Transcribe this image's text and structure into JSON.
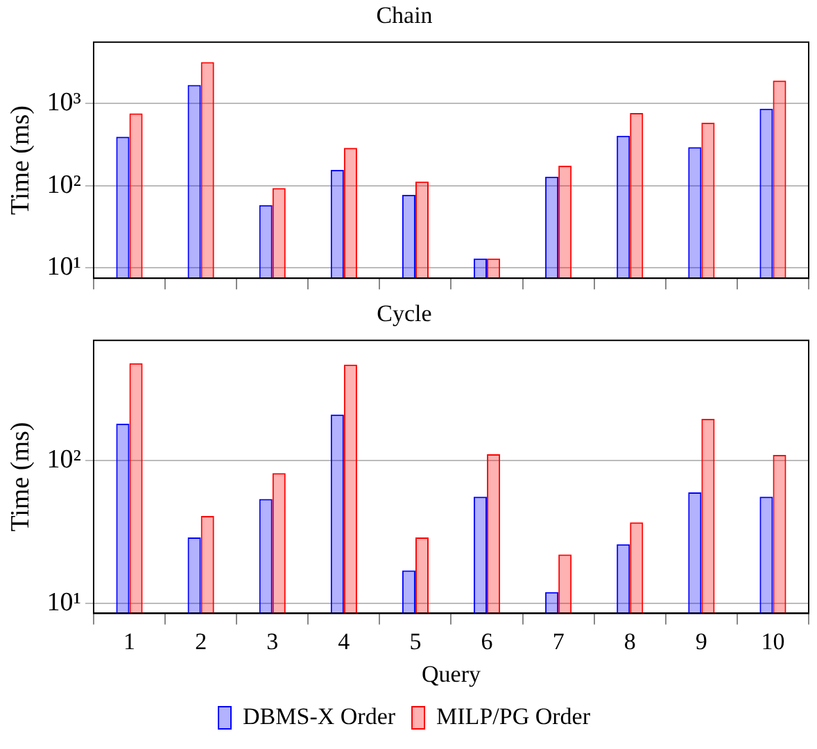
{
  "chart_data": [
    {
      "type": "bar",
      "title": "Chain",
      "ylabel": "Time (ms)",
      "categories": [
        "1",
        "2",
        "3",
        "4",
        "5",
        "6",
        "7",
        "8",
        "9",
        "10"
      ],
      "series": [
        {
          "color": "#0000ff",
          "values": [
            390,
            1660,
            58,
            155,
            77,
            13,
            128,
            403,
            292,
            857
          ]
        },
        {
          "color": "#ff0000",
          "values": [
            750,
            3150,
            93,
            287,
            112,
            13,
            174,
            760,
            578,
            1880
          ]
        }
      ],
      "log": "y",
      "ylim": [
        7.5,
        5500
      ],
      "yticks": [
        {
          "value": 10,
          "label": "10¹"
        },
        {
          "value": 100,
          "label": "10²"
        },
        {
          "value": 1000,
          "label": "10³"
        }
      ],
      "grid": "y",
      "tick_labels": "y",
      "legend": false
    },
    {
      "type": "bar",
      "title": "Cycle",
      "xlabel": "Query",
      "ylabel": "Time (ms)",
      "categories": [
        "1",
        "2",
        "3",
        "4",
        "5",
        "6",
        "7",
        "8",
        "9",
        "10"
      ],
      "series": [
        {
          "name": "DBMS-X Order",
          "color": "#0000ff",
          "values": [
            182,
            29,
            54,
            211,
            17,
            56,
            12,
            26,
            60,
            56
          ]
        },
        {
          "name": "MILP/PG Order",
          "color": "#ff0000",
          "values": [
            484,
            41,
            82,
            473,
            29,
            111,
            22,
            37,
            197,
            110
          ]
        }
      ],
      "log": "y",
      "ylim": [
        8.5,
        700
      ],
      "yticks": [
        {
          "value": 10,
          "label": "10¹"
        },
        {
          "value": 100,
          "label": "10²"
        }
      ],
      "grid": "y",
      "legend": "bottom"
    }
  ]
}
